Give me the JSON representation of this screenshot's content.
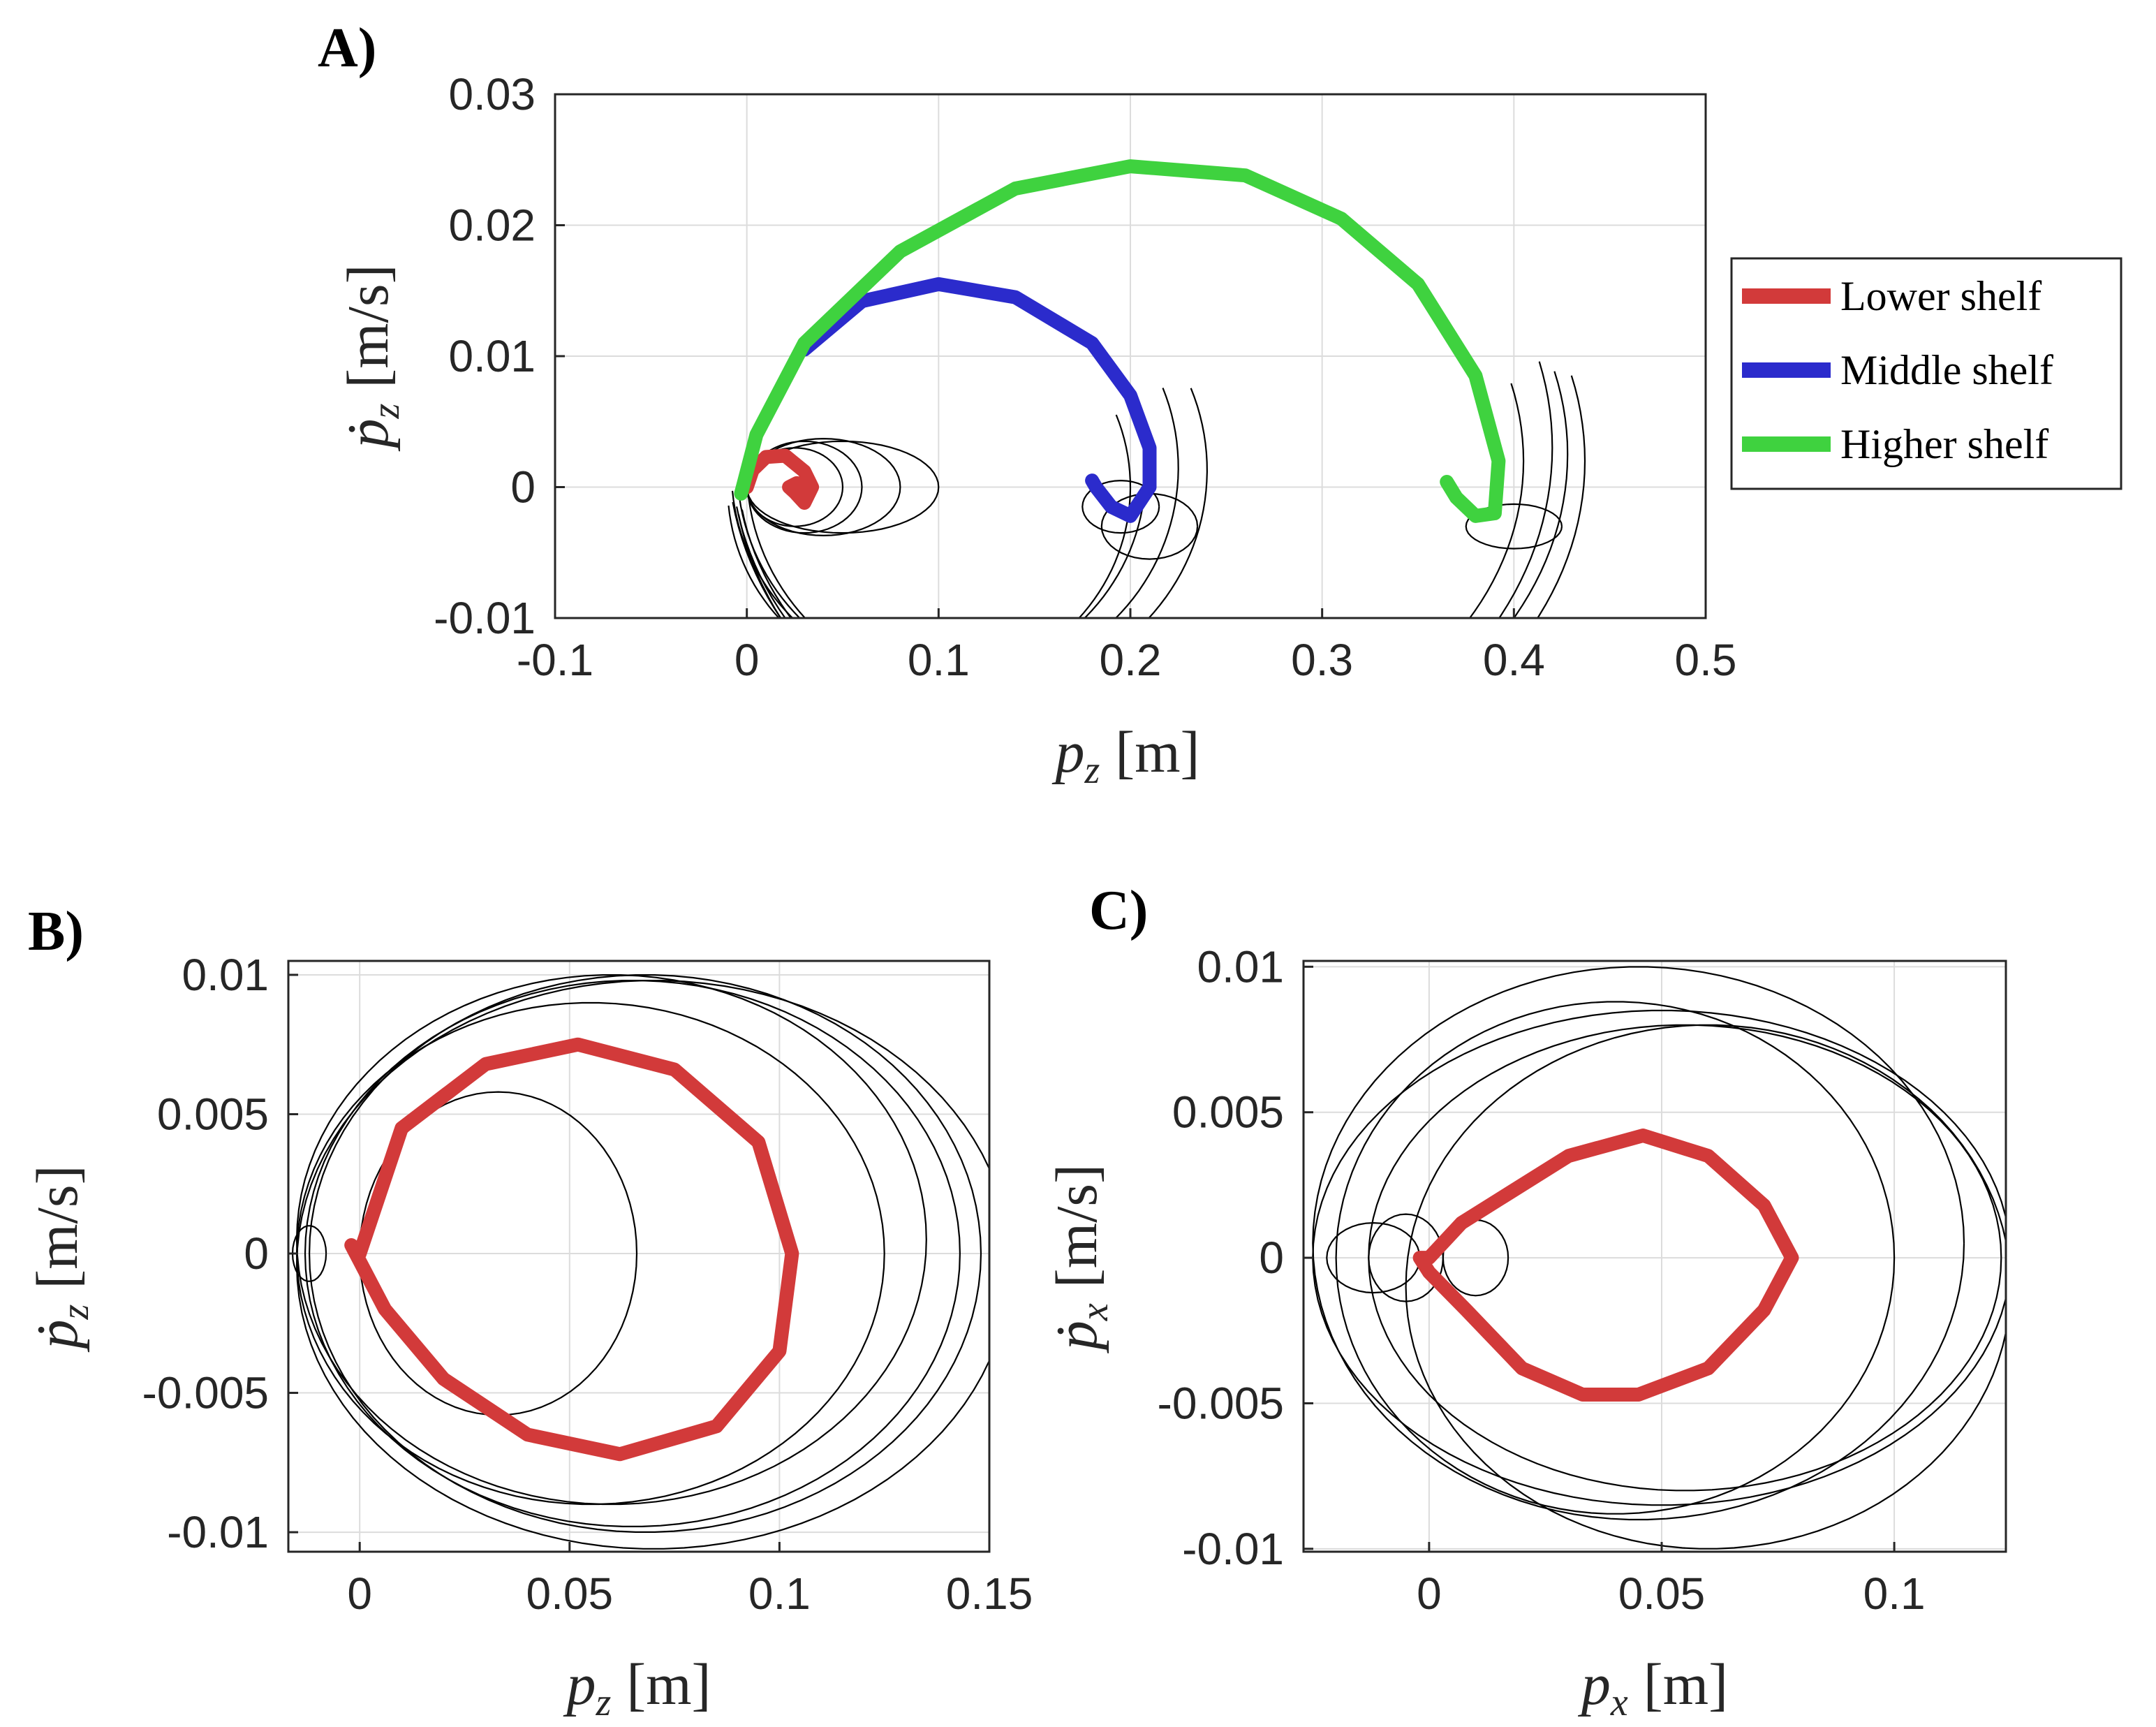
{
  "colors": {
    "lower": "#d23a3a",
    "middle": "#2b2bcc",
    "higher": "#3fd23f",
    "thin": "#000000",
    "grid": "#dcdcdc"
  },
  "legend": [
    "Lower shelf",
    "Middle shelf",
    "Higher shelf"
  ],
  "chart_data": [
    {
      "type": "line",
      "panel": "A)",
      "xlabel": {
        "sym": "p",
        "sub": "z",
        "unit": "[m]"
      },
      "ylabel": {
        "sym": "ṗ",
        "sub": "z",
        "unit": "[m/s]"
      },
      "xlim": [
        -0.1,
        0.5
      ],
      "ylim": [
        -0.01,
        0.03
      ],
      "xticks": [
        -0.1,
        0,
        0.1,
        0.2,
        0.3,
        0.4,
        0.5
      ],
      "yticks": [
        -0.01,
        0,
        0.01,
        0.02,
        0.03
      ],
      "xtick_labels": [
        "-0.1",
        "0",
        "0.1",
        "0.2",
        "0.3",
        "0.4",
        "0.5"
      ],
      "ytick_labels": [
        "-0.01",
        "0",
        "0.01",
        "0.02",
        "0.03"
      ],
      "series": [
        {
          "name": "Lower shelf",
          "x": [
            0.0,
            0.003,
            0.01,
            0.02,
            0.03,
            0.034,
            0.03,
            0.025,
            0.022,
            0.026,
            0.03
          ],
          "y": [
            0.0,
            0.0013,
            0.0023,
            0.0024,
            0.0012,
            0.0,
            -0.0012,
            -0.0004,
            0.0,
            0.0003,
            0.0
          ]
        },
        {
          "name": "Middle shelf",
          "x": [
            0.03,
            0.06,
            0.1,
            0.14,
            0.18,
            0.2,
            0.21,
            0.21,
            0.2,
            0.19,
            0.182,
            0.18
          ],
          "y": [
            0.0105,
            0.0142,
            0.0155,
            0.0145,
            0.011,
            0.007,
            0.003,
            0.0,
            -0.0022,
            -0.0015,
            0.0,
            0.0005
          ]
        },
        {
          "name": "Higher shelf",
          "x": [
            -0.003,
            0.005,
            0.03,
            0.08,
            0.14,
            0.2,
            0.26,
            0.31,
            0.35,
            0.38,
            0.392,
            0.39,
            0.38,
            0.37,
            0.365
          ],
          "y": [
            -0.0005,
            0.004,
            0.011,
            0.018,
            0.0228,
            0.0245,
            0.0238,
            0.0205,
            0.0155,
            0.0085,
            0.002,
            -0.002,
            -0.0022,
            -0.0008,
            0.0004
          ]
        }
      ]
    },
    {
      "type": "line",
      "panel": "B)",
      "xlabel": {
        "sym": "p",
        "sub": "z",
        "unit": "[m]"
      },
      "ylabel": {
        "sym": "ṗ",
        "sub": "z",
        "unit": "[m/s]"
      },
      "xlim": [
        -0.017,
        0.15
      ],
      "ylim": [
        -0.0107,
        0.0105
      ],
      "xticks": [
        0,
        0.05,
        0.1,
        0.15
      ],
      "yticks": [
        -0.01,
        -0.005,
        0,
        0.005,
        0.01
      ],
      "xtick_labels": [
        "0",
        "0.05",
        "0.1",
        "0.15"
      ],
      "ytick_labels": [
        "-0.01",
        "-0.005",
        "0",
        "0.005",
        "0.01"
      ],
      "series": [
        {
          "name": "Lower shelf",
          "x": [
            0.0,
            0.01,
            0.03,
            0.052,
            0.075,
            0.095,
            0.103,
            0.1,
            0.085,
            0.062,
            0.04,
            0.02,
            0.006,
            -0.002,
            0.0
          ],
          "y": [
            0.0,
            0.0045,
            0.0068,
            0.0075,
            0.0066,
            0.004,
            0.0,
            -0.0035,
            -0.0062,
            -0.0072,
            -0.0065,
            -0.0045,
            -0.002,
            0.0003,
            0.0
          ]
        }
      ]
    },
    {
      "type": "line",
      "panel": "C)",
      "xlabel": {
        "sym": "p",
        "sub": "x",
        "unit": "[m]"
      },
      "ylabel": {
        "sym": "ṗ",
        "sub": "x",
        "unit": "[m/s]"
      },
      "xlim": [
        -0.027,
        0.124
      ],
      "ylim": [
        -0.0101,
        0.0102
      ],
      "xticks": [
        0,
        0.05,
        0.1
      ],
      "yticks": [
        -0.01,
        -0.005,
        0,
        0.005,
        0.01
      ],
      "xtick_labels": [
        "0",
        "0.05",
        "0.1"
      ],
      "ytick_labels": [
        "-0.01",
        "-0.005",
        "0",
        "0.005",
        "0.01"
      ],
      "series": [
        {
          "name": "Lower shelf",
          "x": [
            0.0,
            0.007,
            0.015,
            0.03,
            0.046,
            0.06,
            0.072,
            0.078,
            0.072,
            0.06,
            0.045,
            0.033,
            0.02,
            0.008,
            0.0,
            -0.002,
            0.0
          ],
          "y": [
            0.0,
            0.0012,
            0.002,
            0.0035,
            0.0042,
            0.0035,
            0.0018,
            0.0,
            -0.0018,
            -0.0038,
            -0.0047,
            -0.0047,
            -0.0038,
            -0.0018,
            -0.0005,
            0.0,
            0.0
          ]
        }
      ]
    }
  ]
}
